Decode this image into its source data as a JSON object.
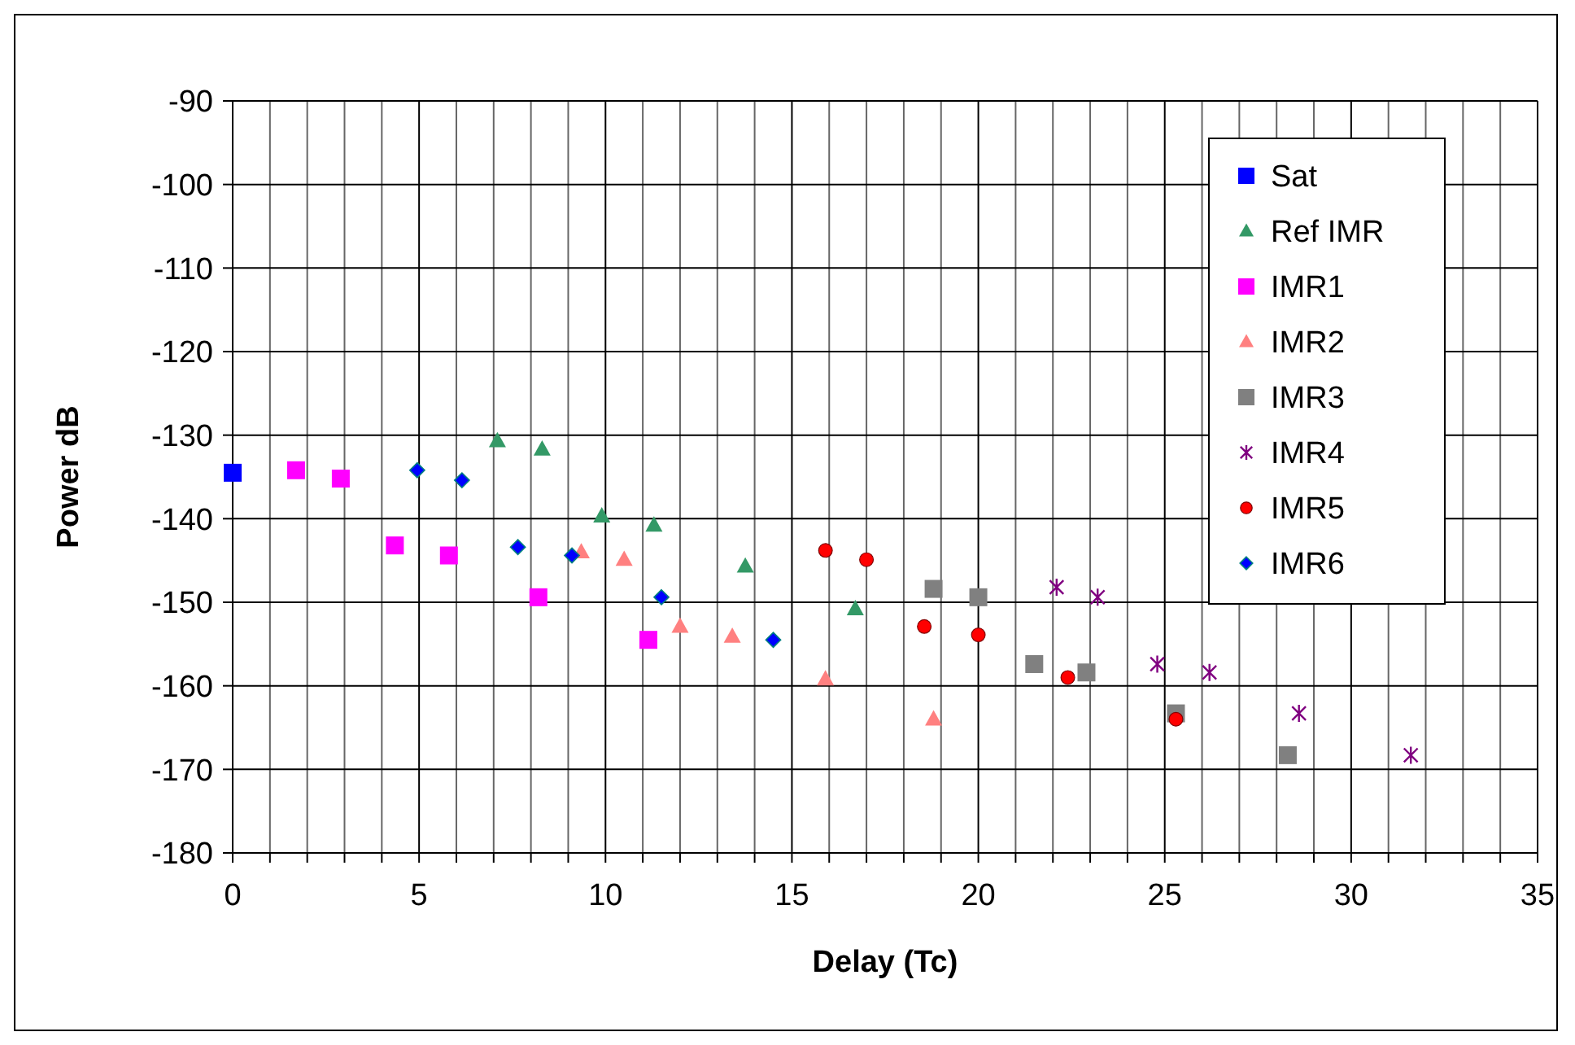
{
  "chart_data": {
    "type": "scatter",
    "xlabel": "Delay (Tc)",
    "ylabel": "Power dB",
    "xlim": [
      0,
      35
    ],
    "ylim": [
      -180,
      -90
    ],
    "xticks": [
      0,
      {
        "value": 1,
        "label": null
      },
      {
        "value": 2,
        "label": null
      },
      {
        "value": 3,
        "label": null
      },
      {
        "value": 4,
        "label": null
      },
      5,
      {
        "value": 6,
        "label": null
      },
      {
        "value": 7,
        "label": null
      },
      {
        "value": 8,
        "label": null
      },
      {
        "value": 9,
        "label": null
      },
      10,
      {
        "value": 11,
        "label": null
      },
      {
        "value": 12,
        "label": null
      },
      {
        "value": 13,
        "label": null
      },
      {
        "value": 14,
        "label": null
      },
      15,
      {
        "value": 16,
        "label": null
      },
      {
        "value": 17,
        "label": null
      },
      {
        "value": 18,
        "label": null
      },
      {
        "value": 19,
        "label": null
      },
      20,
      {
        "value": 21,
        "label": null
      },
      {
        "value": 22,
        "label": null
      },
      {
        "value": 23,
        "label": null
      },
      {
        "value": 24,
        "label": null
      },
      25,
      {
        "value": 26,
        "label": null
      },
      {
        "value": 27,
        "label": null
      },
      {
        "value": 28,
        "label": null
      },
      {
        "value": 29,
        "label": null
      },
      30,
      {
        "value": 31,
        "label": null
      },
      {
        "value": 32,
        "label": null
      },
      {
        "value": 33,
        "label": null
      },
      {
        "value": 34,
        "label": null
      },
      35
    ],
    "yticks": [
      -180,
      -170,
      -160,
      -150,
      -140,
      -130,
      -120,
      -110,
      -100,
      -90
    ],
    "grid": true,
    "legend": "top right",
    "series": [
      {
        "name": "Sat",
        "color": "#0000ff",
        "marker": "square",
        "x": [
          0
        ],
        "values": [
          -134.5
        ]
      },
      {
        "name": "Ref IMR",
        "color": "#339966",
        "marker": "triangle",
        "x": [
          7.1,
          8.3,
          9.9,
          11.3,
          13.75,
          16.7
        ],
        "values": [
          -130.7,
          -131.7,
          -139.7,
          -140.8,
          -145.7,
          -150.8
        ]
      },
      {
        "name": "IMR1",
        "color": "#ff00ff",
        "marker": "square",
        "x": [
          1.7,
          2.9,
          4.35,
          5.8,
          8.2,
          11.15
        ],
        "values": [
          -134.2,
          -135.2,
          -143.2,
          -144.4,
          -149.4,
          -154.5
        ]
      },
      {
        "name": "IMR2",
        "color": "#ff8080",
        "marker": "triangle",
        "x": [
          9.35,
          10.5,
          12.0,
          13.4,
          15.9,
          18.8
        ],
        "values": [
          -144,
          -144.9,
          -152.9,
          -154.1,
          -159.2,
          -164
        ]
      },
      {
        "name": "IMR3",
        "color": "#808080",
        "marker": "square",
        "x": [
          18.8,
          20.0,
          21.5,
          22.9,
          25.3,
          28.3
        ],
        "values": [
          -148.4,
          -149.4,
          -157.4,
          -158.4,
          -163.3,
          -168.3
        ]
      },
      {
        "name": "IMR4",
        "color": "#800080",
        "marker": "cross",
        "x": [
          22.1,
          23.2,
          24.8,
          26.2,
          28.6,
          31.6
        ],
        "values": [
          -148.2,
          -149.4,
          -157.4,
          -158.4,
          -163.3,
          -168.3
        ]
      },
      {
        "name": "IMR5",
        "color": "#ff0000",
        "marker": "circle",
        "x": [
          15.9,
          17.0,
          18.55,
          20.0,
          22.4,
          25.3
        ],
        "values": [
          -143.8,
          -144.9,
          -152.9,
          -153.9,
          -159,
          -164
        ]
      },
      {
        "name": "IMR6",
        "color": "#0000ff",
        "marker": "diamond",
        "x": [
          4.95,
          6.15,
          7.65,
          9.1,
          11.5,
          14.5
        ],
        "values": [
          -134.2,
          -135.4,
          -143.4,
          -144.4,
          -149.4,
          -154.5
        ]
      }
    ]
  }
}
